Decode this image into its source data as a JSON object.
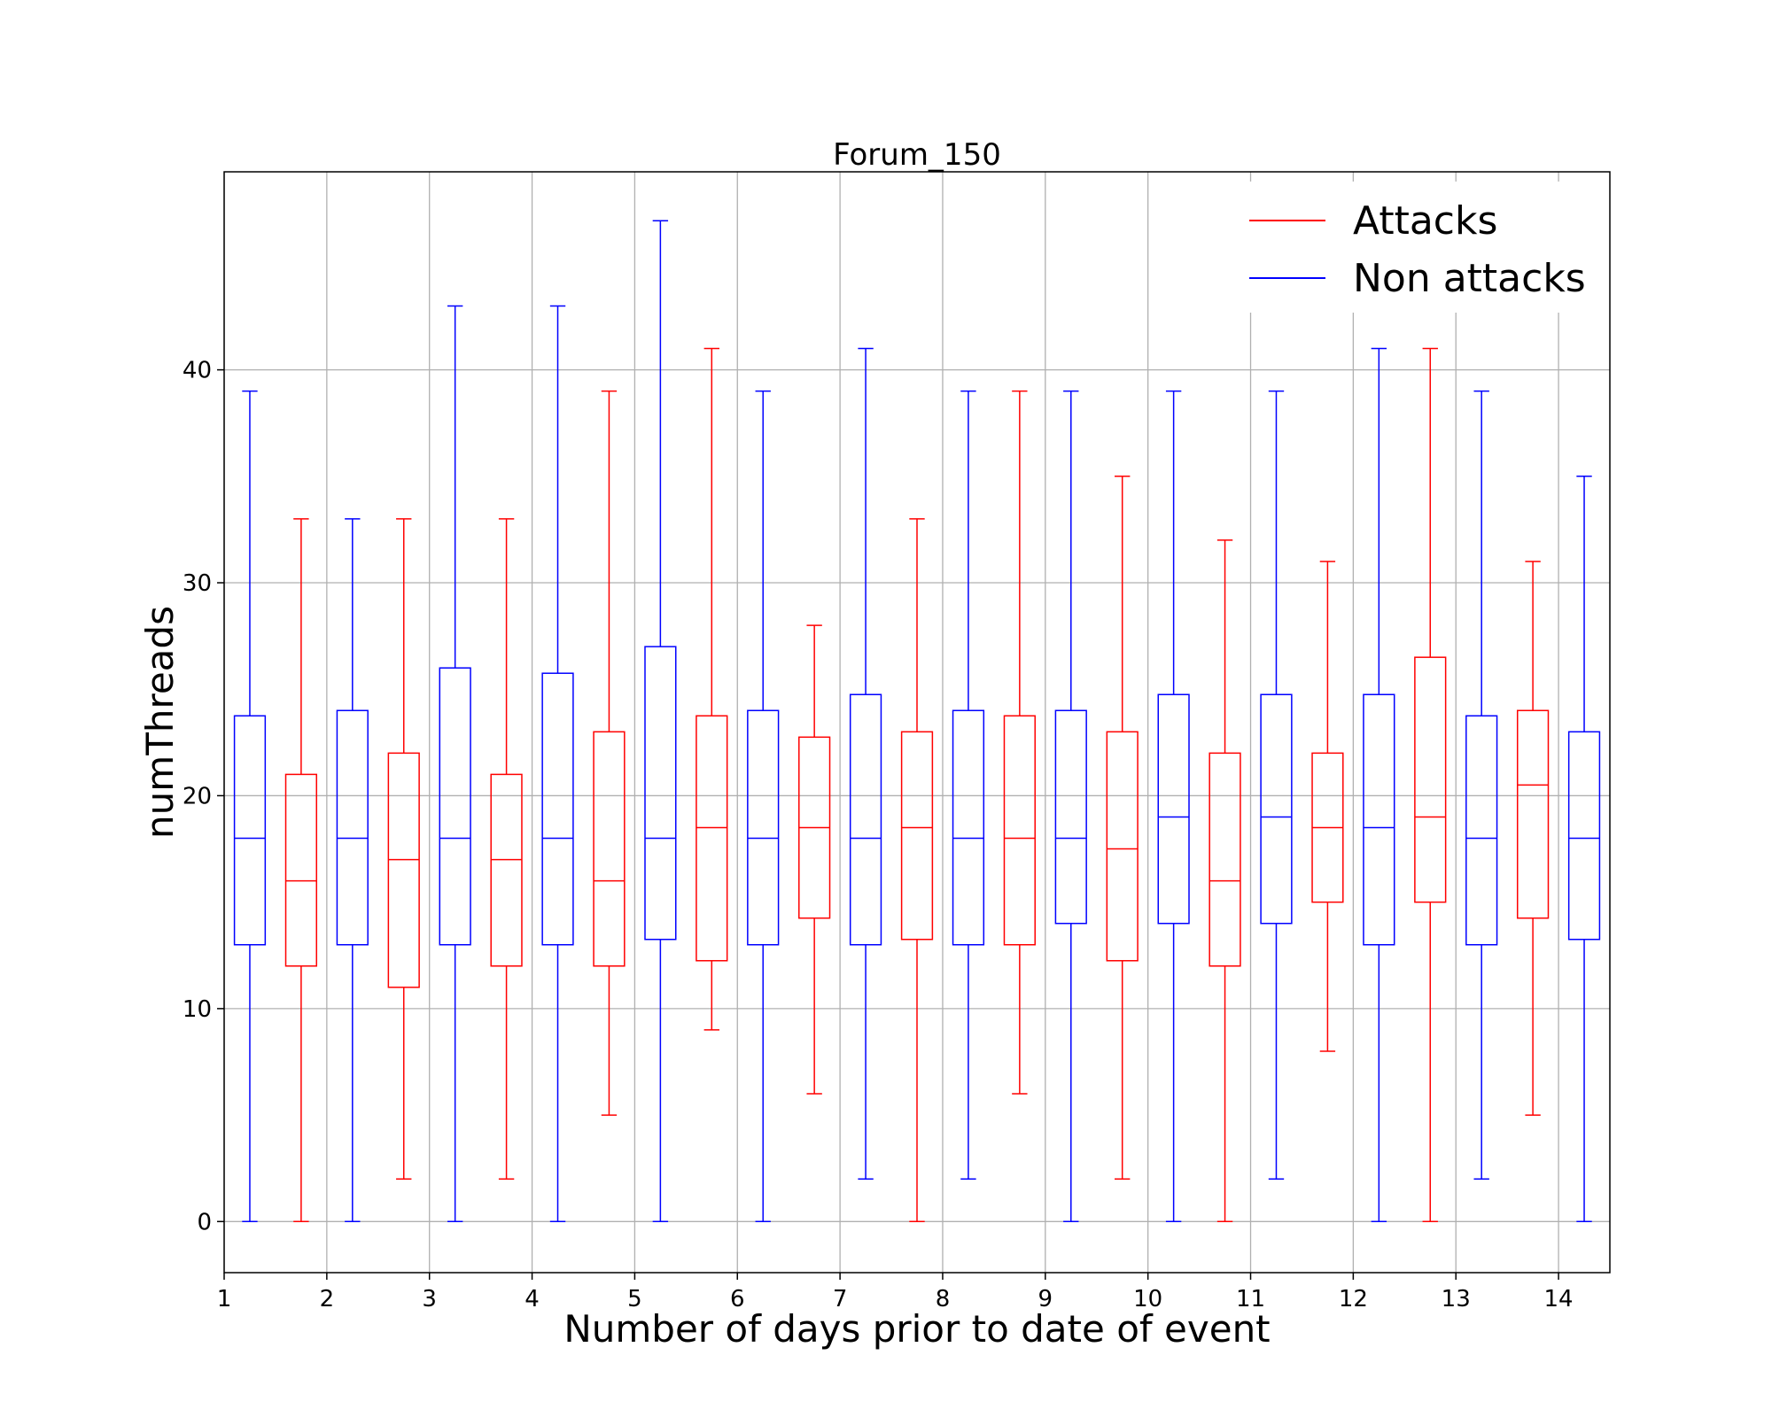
{
  "chart_data": {
    "type": "box",
    "title": "Forum_150",
    "xlabel": "Number of days prior to date of event",
    "ylabel": "numThreads",
    "xlim": [
      1,
      14.5
    ],
    "ylim": [
      -2.4,
      49.3
    ],
    "x_ticks": [
      {
        "value": 1,
        "label": "1"
      },
      {
        "value": 2,
        "label": "2"
      },
      {
        "value": 3,
        "label": "3"
      },
      {
        "value": 4,
        "label": "4"
      },
      {
        "value": 5,
        "label": "5"
      },
      {
        "value": 6,
        "label": "6"
      },
      {
        "value": 7,
        "label": "7"
      },
      {
        "value": 8,
        "label": "8"
      },
      {
        "value": 9,
        "label": "9"
      },
      {
        "value": 10,
        "label": "10"
      },
      {
        "value": 11,
        "label": "11"
      },
      {
        "value": 12,
        "label": "12"
      },
      {
        "value": 13,
        "label": "13"
      },
      {
        "value": 14,
        "label": "14"
      }
    ],
    "y_ticks": [
      {
        "value": 0,
        "label": "0"
      },
      {
        "value": 10,
        "label": "10"
      },
      {
        "value": 20,
        "label": "20"
      },
      {
        "value": 30,
        "label": "30"
      },
      {
        "value": 40,
        "label": "40"
      }
    ],
    "grid": true,
    "legend": {
      "position": "top-right",
      "entries": [
        {
          "label": "Attacks",
          "color": "#ff0000"
        },
        {
          "label": "Non attacks",
          "color": "#0000ff"
        }
      ]
    },
    "boxes": [
      {
        "x": 1.25,
        "series": "Non attacks",
        "whislo": 0,
        "q1": 13,
        "med": 18,
        "q3": 23.75,
        "whishi": 39
      },
      {
        "x": 1.75,
        "series": "Attacks",
        "whislo": 0,
        "q1": 12,
        "med": 16,
        "q3": 21,
        "whishi": 33
      },
      {
        "x": 2.25,
        "series": "Non attacks",
        "whislo": 0,
        "q1": 13,
        "med": 18,
        "q3": 24,
        "whishi": 33
      },
      {
        "x": 2.75,
        "series": "Attacks",
        "whislo": 2,
        "q1": 11,
        "med": 17,
        "q3": 22,
        "whishi": 33
      },
      {
        "x": 3.25,
        "series": "Non attacks",
        "whislo": 0,
        "q1": 13,
        "med": 18,
        "q3": 26,
        "whishi": 43
      },
      {
        "x": 3.75,
        "series": "Attacks",
        "whislo": 2,
        "q1": 12,
        "med": 17,
        "q3": 21,
        "whishi": 33
      },
      {
        "x": 4.25,
        "series": "Non attacks",
        "whislo": 0,
        "q1": 13,
        "med": 18,
        "q3": 25.75,
        "whishi": 43
      },
      {
        "x": 4.75,
        "series": "Attacks",
        "whislo": 5,
        "q1": 12,
        "med": 16,
        "q3": 23,
        "whishi": 39
      },
      {
        "x": 5.25,
        "series": "Non attacks",
        "whislo": 0,
        "q1": 13.25,
        "med": 18,
        "q3": 27,
        "whishi": 47
      },
      {
        "x": 5.75,
        "series": "Attacks",
        "whislo": 9,
        "q1": 12.25,
        "med": 18.5,
        "q3": 23.75,
        "whishi": 41
      },
      {
        "x": 6.25,
        "series": "Non attacks",
        "whislo": 0,
        "q1": 13,
        "med": 18,
        "q3": 24,
        "whishi": 39
      },
      {
        "x": 6.75,
        "series": "Attacks",
        "whislo": 6,
        "q1": 14.25,
        "med": 18.5,
        "q3": 22.75,
        "whishi": 28
      },
      {
        "x": 7.25,
        "series": "Non attacks",
        "whislo": 2,
        "q1": 13,
        "med": 18,
        "q3": 24.75,
        "whishi": 41
      },
      {
        "x": 7.75,
        "series": "Attacks",
        "whislo": 0,
        "q1": 13.25,
        "med": 18.5,
        "q3": 23,
        "whishi": 33
      },
      {
        "x": 8.25,
        "series": "Non attacks",
        "whislo": 2,
        "q1": 13,
        "med": 18,
        "q3": 24,
        "whishi": 39
      },
      {
        "x": 8.75,
        "series": "Attacks",
        "whislo": 6,
        "q1": 13,
        "med": 18,
        "q3": 23.75,
        "whishi": 39
      },
      {
        "x": 9.25,
        "series": "Non attacks",
        "whislo": 0,
        "q1": 14,
        "med": 18,
        "q3": 24,
        "whishi": 39
      },
      {
        "x": 9.75,
        "series": "Attacks",
        "whislo": 2,
        "q1": 12.25,
        "med": 17.5,
        "q3": 23,
        "whishi": 35
      },
      {
        "x": 10.25,
        "series": "Non attacks",
        "whislo": 0,
        "q1": 14,
        "med": 19,
        "q3": 24.75,
        "whishi": 39
      },
      {
        "x": 10.75,
        "series": "Attacks",
        "whislo": 0,
        "q1": 12,
        "med": 16,
        "q3": 22,
        "whishi": 32
      },
      {
        "x": 11.25,
        "series": "Non attacks",
        "whislo": 2,
        "q1": 14,
        "med": 19,
        "q3": 24.75,
        "whishi": 39
      },
      {
        "x": 11.75,
        "series": "Attacks",
        "whislo": 8,
        "q1": 15,
        "med": 18.5,
        "q3": 22,
        "whishi": 31
      },
      {
        "x": 12.25,
        "series": "Non attacks",
        "whislo": 0,
        "q1": 13,
        "med": 18.5,
        "q3": 24.75,
        "whishi": 41
      },
      {
        "x": 12.75,
        "series": "Attacks",
        "whislo": 0,
        "q1": 15,
        "med": 19,
        "q3": 26.5,
        "whishi": 41
      },
      {
        "x": 13.25,
        "series": "Non attacks",
        "whislo": 2,
        "q1": 13,
        "med": 18,
        "q3": 23.75,
        "whishi": 39
      },
      {
        "x": 13.75,
        "series": "Attacks",
        "whislo": 5,
        "q1": 14.25,
        "med": 20.5,
        "q3": 24,
        "whishi": 31
      },
      {
        "x": 14.25,
        "series": "Non attacks",
        "whislo": 0,
        "q1": 13.25,
        "med": 18,
        "q3": 23,
        "whishi": 35
      }
    ]
  }
}
